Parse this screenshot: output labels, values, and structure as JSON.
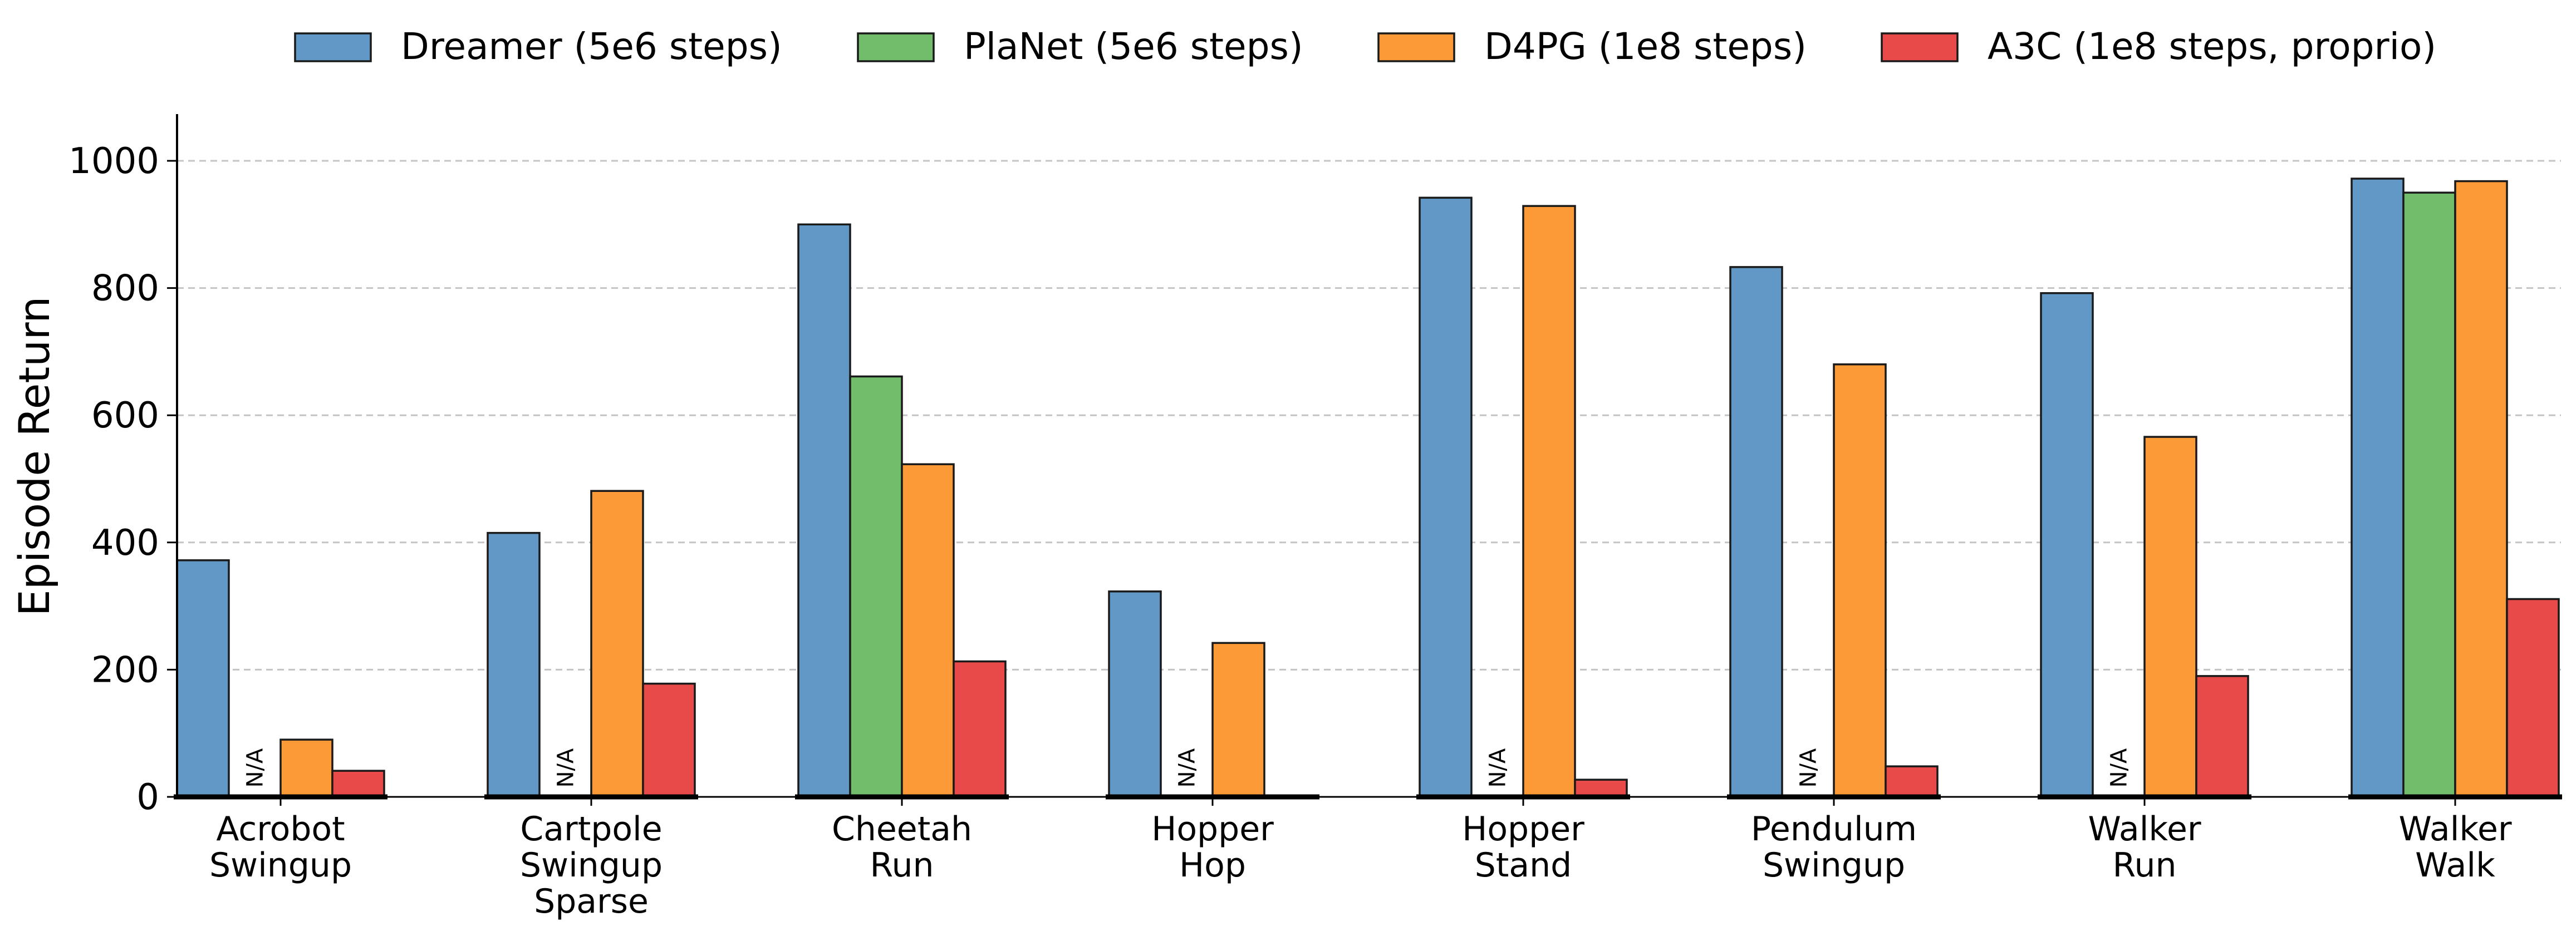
{
  "chart_data": {
    "type": "bar",
    "categories": [
      [
        "Acrobot",
        "Swingup"
      ],
      [
        "Cartpole",
        "Swingup",
        "Sparse"
      ],
      [
        "Cheetah",
        "Run"
      ],
      [
        "Hopper",
        "Hop"
      ],
      [
        "Hopper",
        "Stand"
      ],
      [
        "Pendulum",
        "Swingup"
      ],
      [
        "Walker",
        "Run"
      ],
      [
        "Walker",
        "Walk"
      ]
    ],
    "series": [
      {
        "name": "Dreamer (5e6 steps)",
        "color": "#6198c6",
        "values": [
          372,
          415,
          900,
          323,
          942,
          833,
          792,
          972
        ]
      },
      {
        "name": "PlaNet (5e6 steps)",
        "color": "#72bd6b",
        "values": [
          null,
          null,
          661,
          null,
          null,
          null,
          null,
          950
        ]
      },
      {
        "name": "D4PG (1e8 steps)",
        "color": "#fd9a38",
        "values": [
          90,
          481,
          523,
          242,
          929,
          680,
          566,
          968
        ]
      },
      {
        "name": "A3C (1e8 steps, proprio)",
        "color": "#e84a4a",
        "values": [
          41,
          178,
          213,
          1,
          27,
          48,
          190,
          311
        ]
      }
    ],
    "na_label": "N/A",
    "ylabel": "Episode Return",
    "yticks": [
      "0",
      "200",
      "400",
      "600",
      "800",
      "1000"
    ],
    "ylim": [
      0,
      1075
    ],
    "grid": "horizontal dashed",
    "legend_position": "top"
  }
}
